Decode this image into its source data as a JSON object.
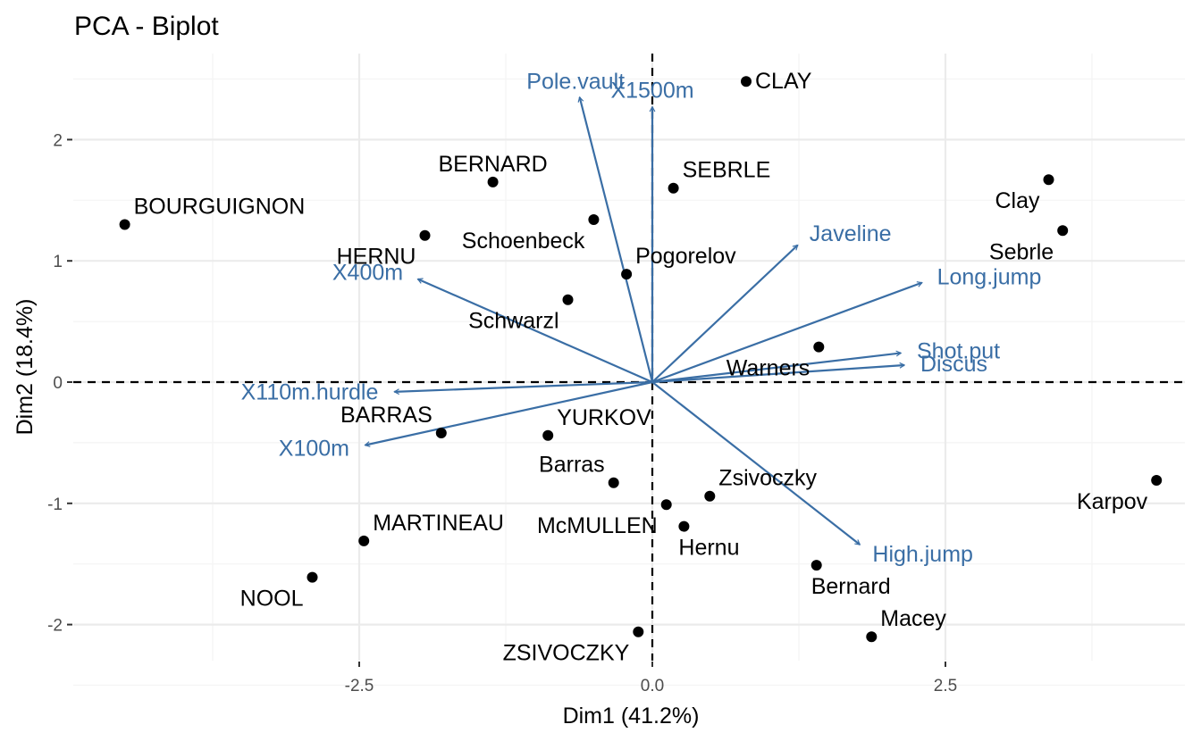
{
  "chart_data": {
    "type": "scatter",
    "subtype": "pca-biplot",
    "title": "PCA - Biplot",
    "xlabel": "Dim1 (41.2%)",
    "ylabel": "Dim2 (18.4%)",
    "xlim": [
      -4.4,
      4.55
    ],
    "ylim": [
      -2.27,
      2.7
    ],
    "xticks": [
      -2.5,
      0.0,
      2.5
    ],
    "xtick_labels": [
      "-2.5",
      "0.0",
      "2.5"
    ],
    "yticks": [
      -2,
      -1,
      0,
      1,
      2
    ],
    "ytick_labels": [
      "-2",
      "-1",
      "0",
      "1",
      "2"
    ],
    "grid": true,
    "colors": {
      "individuals": "#000000",
      "variables": "#3a6ea5",
      "grid": "#ebebeb",
      "ticks": "#4d4d4d"
    },
    "individuals": [
      {
        "name": "CLAY",
        "x": 0.8,
        "y": 2.48,
        "pos": "right"
      },
      {
        "name": "BERNARD",
        "x": -1.36,
        "y": 1.65,
        "pos": "top"
      },
      {
        "name": "SEBRLE",
        "x": 0.18,
        "y": 1.6,
        "pos": "top-right"
      },
      {
        "name": "BOURGUIGNON",
        "x": -4.5,
        "y": 1.3,
        "pos": "top-right"
      },
      {
        "name": "Schoenbeck",
        "x": -0.5,
        "y": 1.34,
        "pos": "bottom-left"
      },
      {
        "name": "HERNU",
        "x": -1.94,
        "y": 1.21,
        "pos": "bottom-left"
      },
      {
        "name": "Pogorelov",
        "x": -0.22,
        "y": 0.89,
        "pos": "top-right"
      },
      {
        "name": "Schwarzl",
        "x": -0.72,
        "y": 0.68,
        "pos": "bottom-left"
      },
      {
        "name": "Clay",
        "x": 3.38,
        "y": 1.67,
        "pos": "bottom-left"
      },
      {
        "name": "Sebrle",
        "x": 3.5,
        "y": 1.25,
        "pos": "bottom-left"
      },
      {
        "name": "Warners",
        "x": 1.42,
        "y": 0.29,
        "pos": "bottom-left"
      },
      {
        "name": "BARRAS",
        "x": -1.8,
        "y": -0.42,
        "pos": "top-left"
      },
      {
        "name": "YURKOV",
        "x": -0.89,
        "y": -0.44,
        "pos": "top-right"
      },
      {
        "name": "Barras",
        "x": -0.33,
        "y": -0.83,
        "pos": "top-left"
      },
      {
        "name": "Zsivoczky",
        "x": 0.49,
        "y": -0.94,
        "pos": "top-right"
      },
      {
        "name": "McMULLEN",
        "x": 0.12,
        "y": -1.01,
        "pos": "bottom-left"
      },
      {
        "name": "Hernu",
        "x": 0.27,
        "y": -1.19,
        "pos": "bottom-right"
      },
      {
        "name": "Karpov",
        "x": 4.3,
        "y": -0.81,
        "pos": "bottom-left"
      },
      {
        "name": "MARTINEAU",
        "x": -2.46,
        "y": -1.31,
        "pos": "top-right"
      },
      {
        "name": "NOOL",
        "x": -2.9,
        "y": -1.61,
        "pos": "bottom-left"
      },
      {
        "name": "Bernard",
        "x": 1.4,
        "y": -1.51,
        "pos": "bottom-right"
      },
      {
        "name": "Macey",
        "x": 1.87,
        "y": -2.1,
        "pos": "top-right"
      },
      {
        "name": "ZSIVOCZKY",
        "x": -0.12,
        "y": -2.06,
        "pos": "bottom-left"
      }
    ],
    "variables": [
      {
        "name": "Pole.vault",
        "x": -0.62,
        "y": 2.35
      },
      {
        "name": "X1500m",
        "x": 0.0,
        "y": 2.27
      },
      {
        "name": "Javeline",
        "x": 1.24,
        "y": 1.13
      },
      {
        "name": "Long.jump",
        "x": 2.3,
        "y": 0.82
      },
      {
        "name": "Shot.put",
        "x": 2.12,
        "y": 0.24
      },
      {
        "name": "Discus",
        "x": 2.15,
        "y": 0.14
      },
      {
        "name": "X400m",
        "x": -2.0,
        "y": 0.85
      },
      {
        "name": "X110m.hurdle",
        "x": -2.2,
        "y": -0.08
      },
      {
        "name": "X100m",
        "x": -2.45,
        "y": -0.52
      },
      {
        "name": "High.jump",
        "x": 1.77,
        "y": -1.34
      }
    ]
  }
}
